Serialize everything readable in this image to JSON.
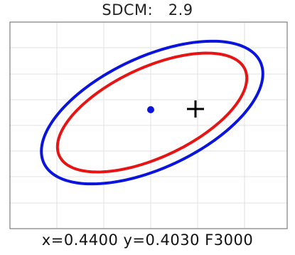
{
  "chart_data": {
    "type": "scatter",
    "title": "SDCM:   2.9",
    "footer": "x=0.4400 y=0.4030 F3000",
    "grid": true,
    "colors": {
      "outer_ellipse": "#0a14dc",
      "inner_ellipse": "#e61414",
      "point": "#0a14dc",
      "cross": "#000000",
      "grid": "#e2e2e2",
      "frame": "#666666"
    }
  }
}
